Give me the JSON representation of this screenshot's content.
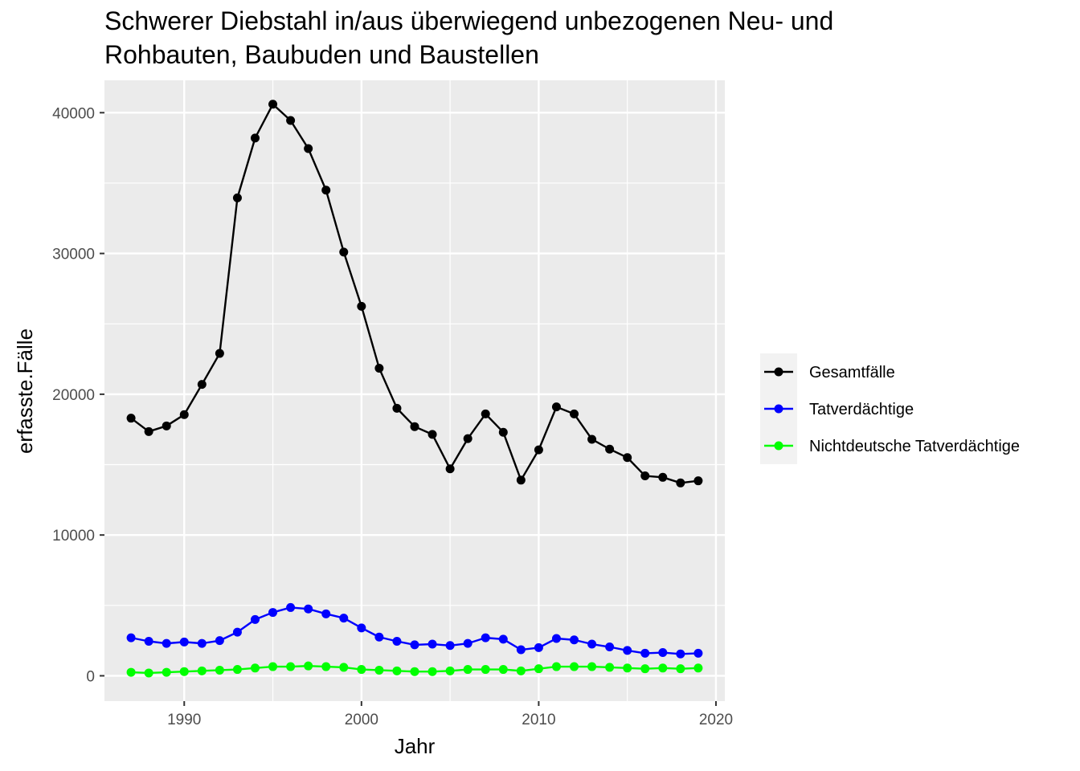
{
  "chart_data": {
    "type": "line",
    "title": "Schwerer Diebstahl in/aus überwiegend unbezogenen Neu- und Rohbauten, Baubuden und Baustellen",
    "title_lines": [
      "Schwerer Diebstahl in/aus überwiegend unbezogenen Neu- und",
      "Rohbauten, Baubuden und Baustellen"
    ],
    "xlabel": "Jahr",
    "ylabel": "erfasste.Fälle",
    "xlim": [
      1985.5,
      2020.5
    ],
    "ylim": [
      -1800,
      42300
    ],
    "x_ticks": [
      1990,
      2000,
      2010,
      2020
    ],
    "y_ticks": [
      0,
      10000,
      20000,
      30000,
      40000
    ],
    "x_tick_labels": [
      "1990",
      "2000",
      "2010",
      "2020"
    ],
    "y_tick_labels": [
      "0",
      "10000",
      "20000",
      "30000",
      "40000"
    ],
    "grid": true,
    "legend_position": "right",
    "x": [
      1987,
      1988,
      1989,
      1990,
      1991,
      1992,
      1993,
      1994,
      1995,
      1996,
      1997,
      1998,
      1999,
      2000,
      2001,
      2002,
      2003,
      2004,
      2005,
      2006,
      2007,
      2008,
      2009,
      2010,
      2011,
      2012,
      2013,
      2014,
      2015,
      2016,
      2017,
      2018,
      2019
    ],
    "series": [
      {
        "name": "Gesamtfälle",
        "color": "#000000",
        "values": [
          18300,
          17350,
          17750,
          18550,
          20700,
          22900,
          33950,
          38200,
          40600,
          39450,
          37450,
          34500,
          30100,
          26250,
          21850,
          19000,
          17700,
          17150,
          14700,
          16850,
          18600,
          17300,
          13900,
          16050,
          19100,
          18600,
          16800,
          16100,
          15500,
          14200,
          14100,
          13700,
          13850
        ]
      },
      {
        "name": "Tatverdächtige",
        "color": "#0000ff",
        "values": [
          2700,
          2450,
          2300,
          2400,
          2300,
          2500,
          3100,
          4000,
          4500,
          4850,
          4750,
          4400,
          4100,
          3400,
          2750,
          2450,
          2200,
          2250,
          2150,
          2300,
          2700,
          2600,
          1850,
          2000,
          2650,
          2550,
          2250,
          2050,
          1800,
          1600,
          1650,
          1550,
          1600
        ]
      },
      {
        "name": "Nichtdeutsche Tatverdächtige",
        "color": "#00ff00",
        "values": [
          250,
          200,
          250,
          300,
          350,
          400,
          450,
          550,
          650,
          650,
          700,
          650,
          600,
          450,
          400,
          350,
          300,
          300,
          350,
          450,
          450,
          450,
          350,
          500,
          650,
          650,
          650,
          600,
          550,
          500,
          550,
          500,
          550
        ]
      }
    ]
  }
}
